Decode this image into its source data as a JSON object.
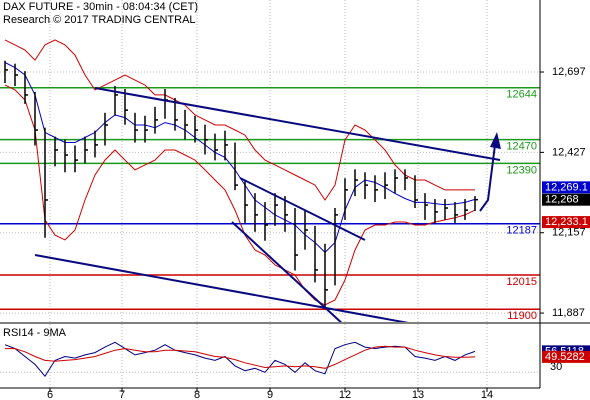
{
  "chart_data": {
    "type": "ohlc",
    "title": "DAX FUTURE - 30min - 08:04:34 (CET)",
    "subtitle": "Research © 2017 TRADING CENTRAL",
    "xlim": [
      -0.5,
      53.5
    ],
    "xticks": [
      {
        "value": 4.5,
        "label": "6"
      },
      {
        "value": 11.7,
        "label": "7"
      },
      {
        "value": 19.2,
        "label": "8"
      },
      {
        "value": 26.5,
        "label": "9"
      },
      {
        "value": 34,
        "label": "12"
      },
      {
        "value": 41.3,
        "label": "13"
      },
      {
        "value": 48.2,
        "label": "14"
      }
    ],
    "ylim": [
      11857,
      12939
    ],
    "yticks": [
      {
        "value": 12697,
        "label": "12,697"
      },
      {
        "value": 12427,
        "label": "12,427"
      },
      {
        "value": 12157,
        "label": "12,157"
      },
      {
        "value": 11887,
        "label": "11,887"
      }
    ],
    "grid": true,
    "bar_color": "#000000",
    "high": [
      12735,
      12725,
      12700,
      12630,
      12510,
      12480,
      12470,
      12450,
      12480,
      12500,
      12560,
      12650,
      12640,
      12560,
      12550,
      12580,
      12640,
      12610,
      12570,
      12550,
      12520,
      12490,
      12500,
      12460,
      12330,
      12290,
      12260,
      12290,
      12280,
      12240,
      12230,
      12180,
      12120,
      12240,
      12340,
      12370,
      12360,
      12350,
      12360,
      12370,
      12370,
      12350,
      12290,
      12270,
      12270,
      12260,
      12270,
      12280
    ],
    "low": [
      12660,
      12650,
      12590,
      12450,
      12140,
      12380,
      12360,
      12360,
      12390,
      12410,
      12450,
      12550,
      12520,
      12460,
      12460,
      12490,
      12540,
      12500,
      12470,
      12460,
      12420,
      12400,
      12400,
      12300,
      12190,
      12160,
      12130,
      12180,
      12160,
      12030,
      12100,
      11990,
      11905,
      11980,
      12200,
      12280,
      12270,
      12260,
      12270,
      12290,
      12300,
      12240,
      12200,
      12190,
      12200,
      12190,
      12200,
      12230
    ],
    "close": [
      12704,
      12687,
      12620,
      12502,
      12267,
      12435,
      12418,
      12401,
      12435,
      12452,
      12519,
      12620,
      12569,
      12502,
      12502,
      12536,
      12603,
      12536,
      12519,
      12502,
      12469,
      12435,
      12452,
      12317,
      12250,
      12217,
      12183,
      12250,
      12217,
      12082,
      12166,
      12032,
      11965,
      12217,
      12301,
      12334,
      12317,
      12301,
      12317,
      12341,
      12341,
      12267,
      12250,
      12227,
      12240,
      12217,
      12233,
      12268
    ],
    "upper_band": {
      "color": "#cc0000",
      "values": [
        12805,
        12788,
        12771,
        12737,
        12788,
        12805,
        12788,
        12754,
        12687,
        12637,
        12653,
        12670,
        12687,
        12670,
        12653,
        12620,
        12620,
        12603,
        12586,
        12553,
        12536,
        12519,
        12519,
        12502,
        12485,
        12435,
        12401,
        12385,
        12368,
        12351,
        12334,
        12317,
        12267,
        12317,
        12469,
        12519,
        12502,
        12469,
        12435,
        12385,
        12351,
        12334,
        12334,
        12317,
        12301,
        12301,
        12301,
        12301
      ]
    },
    "lower_band": {
      "color": "#cc0000",
      "values": [
        12653,
        12637,
        12603,
        12502,
        12200,
        12149,
        12133,
        12166,
        12267,
        12351,
        12401,
        12435,
        12401,
        12368,
        12385,
        12401,
        12435,
        12435,
        12418,
        12401,
        12368,
        12334,
        12301,
        12233,
        12149,
        12099,
        12082,
        12049,
        12032,
        12015,
        11965,
        11931,
        11914,
        11931,
        11998,
        12099,
        12166,
        12183,
        12183,
        12193,
        12193,
        12183,
        12183,
        12193,
        12200,
        12207,
        12217,
        12233.1
      ]
    },
    "moving_average": {
      "color": "#0000cc",
      "values": [
        12729,
        12712,
        12687,
        12620,
        12494,
        12477,
        12460,
        12460,
        12477,
        12494,
        12527,
        12553,
        12544,
        12519,
        12519,
        12510,
        12527,
        12519,
        12502,
        12477,
        12452,
        12427,
        12410,
        12368,
        12317,
        12267,
        12242,
        12217,
        12200,
        12183,
        12150,
        12124,
        12091,
        12124,
        12233,
        12309,
        12334,
        12326,
        12309,
        12289,
        12272,
        12259,
        12259,
        12255,
        12251,
        12254,
        12259,
        12269.1
      ]
    },
    "levels": [
      {
        "value": 12644,
        "color": "#1a9a1a"
      },
      {
        "value": 12470,
        "color": "#1a9a1a"
      },
      {
        "value": 12390,
        "color": "#1a9a1a"
      },
      {
        "value": 12187,
        "color": "#0000cc"
      },
      {
        "value": 12015,
        "color": "#cc0000"
      },
      {
        "value": 11900,
        "color": "#cc0000"
      }
    ],
    "price_tags": [
      {
        "value": 12269.1,
        "label": "12,269.1",
        "color": "#0000cc"
      },
      {
        "value": 12268,
        "label": "12,268",
        "color": "#000000"
      },
      {
        "value": 12233.1,
        "label": "12,233.1",
        "color": "#cc0000"
      }
    ],
    "rsi": {
      "title": "RSI14 - 9MA",
      "ylim": [
        10,
        90
      ],
      "yticks": [
        30
      ],
      "series": [
        {
          "color": "#000080",
          "values": [
            65,
            60,
            50,
            40,
            25,
            45,
            50,
            48,
            52,
            55,
            62,
            68,
            60,
            52,
            55,
            58,
            65,
            58,
            55,
            52,
            48,
            45,
            50,
            38,
            32,
            35,
            30,
            45,
            40,
            30,
            42,
            32,
            28,
            60,
            65,
            68,
            62,
            60,
            62,
            63,
            62,
            50,
            48,
            45,
            50,
            45,
            52,
            56.5118
          ]
        },
        {
          "color": "#cc0000",
          "values": [
            60,
            60,
            56,
            50,
            45,
            44,
            45,
            46,
            48,
            50,
            54,
            58,
            60,
            58,
            56,
            56,
            58,
            58,
            57,
            56,
            53,
            50,
            49,
            46,
            42,
            39,
            36,
            37,
            38,
            37,
            38,
            37,
            35,
            40,
            46,
            52,
            58,
            62,
            63,
            62,
            62,
            58,
            55,
            52,
            50,
            49,
            49,
            49.5282
          ]
        }
      ]
    }
  }
}
